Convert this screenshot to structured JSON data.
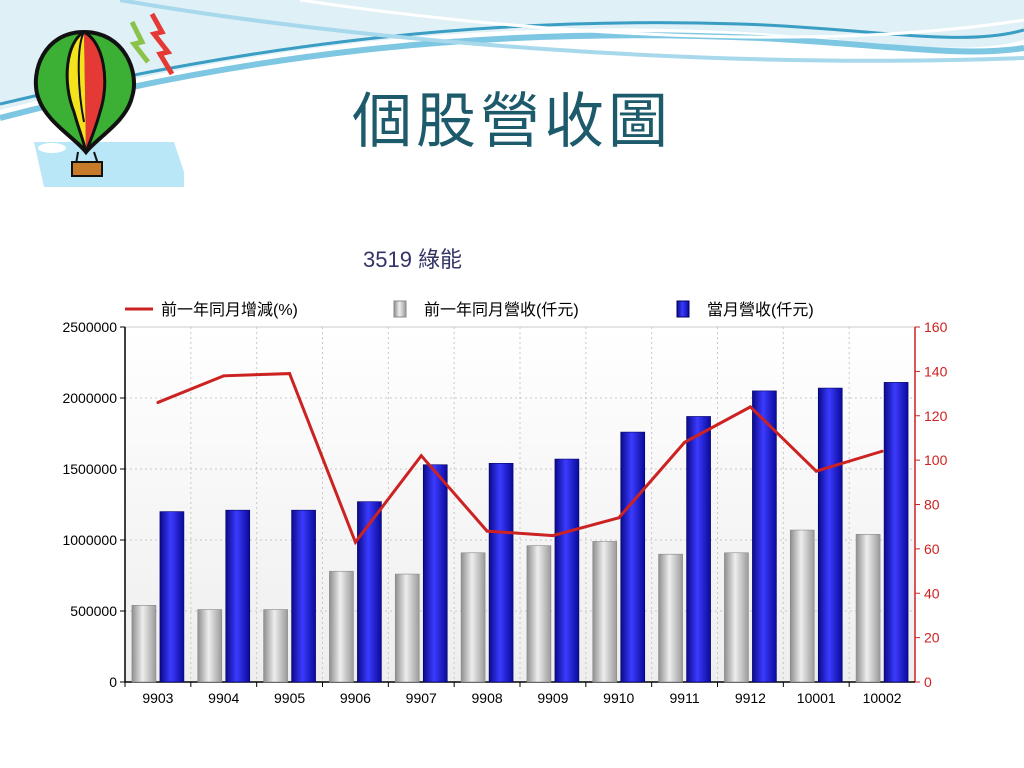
{
  "slide": {
    "title": "個股營收圖"
  },
  "chart_data": {
    "type": "bar",
    "title": "3519  綠能",
    "categories": [
      "9903",
      "9904",
      "9905",
      "9906",
      "9907",
      "9908",
      "9909",
      "9910",
      "9911",
      "9912",
      "10001",
      "10002"
    ],
    "series": [
      {
        "name": "前一年同月增減(%)",
        "type": "line",
        "axis": "right",
        "color": "#cc2222",
        "values": [
          126,
          138,
          139,
          63,
          102,
          68,
          66,
          74,
          108,
          124,
          95,
          104
        ]
      },
      {
        "name": "前一年同月營收(仟元)",
        "type": "bar",
        "axis": "left",
        "color": "#b8b8b8",
        "values": [
          540000,
          510000,
          510000,
          780000,
          760000,
          910000,
          960000,
          990000,
          900000,
          910000,
          1070000,
          1040000
        ]
      },
      {
        "name": "當月營收(仟元)",
        "type": "bar",
        "axis": "left",
        "color": "#1a1adc",
        "values": [
          1200000,
          1210000,
          1210000,
          1270000,
          1530000,
          1540000,
          1570000,
          1760000,
          1870000,
          2050000,
          2070000,
          2110000
        ]
      }
    ],
    "y_left": {
      "range": [
        0,
        2500000
      ],
      "ticks": [
        "0",
        "500000",
        "1000000",
        "1500000",
        "2000000",
        "2500000"
      ]
    },
    "y_right": {
      "range": [
        0,
        160
      ],
      "ticks": [
        "0",
        "20",
        "40",
        "60",
        "80",
        "100",
        "120",
        "140",
        "160"
      ]
    },
    "grid": true,
    "legend_position": "top"
  }
}
